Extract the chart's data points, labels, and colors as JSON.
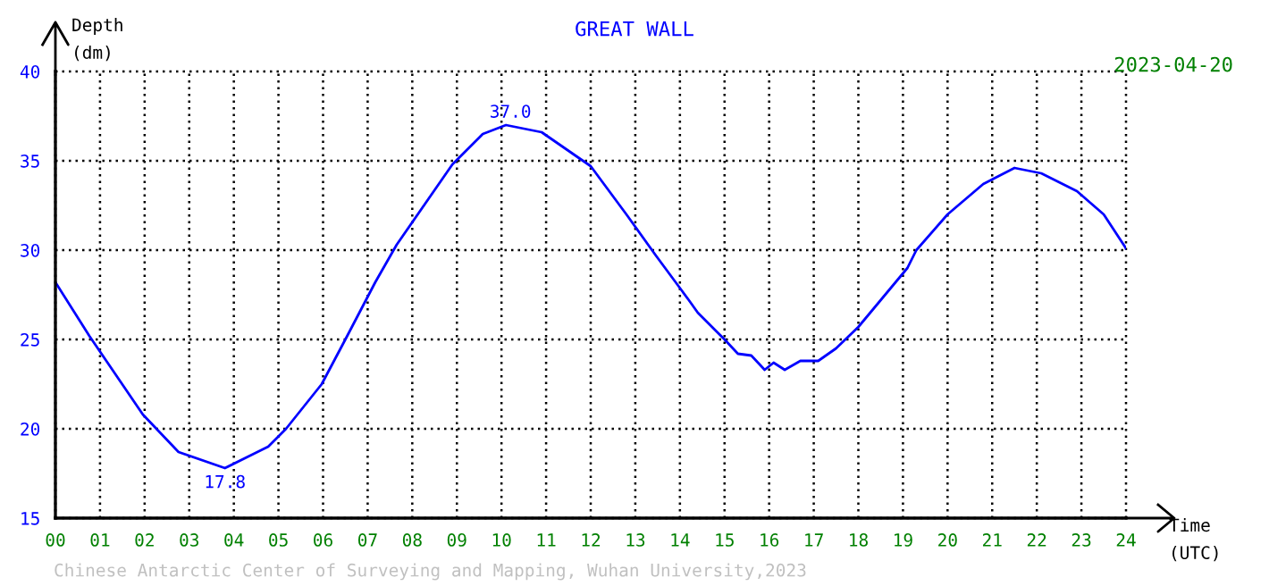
{
  "chart_data": {
    "type": "line",
    "title": "GREAT WALL",
    "subtitle": "2023-04-20",
    "xlabel": "Time\n(UTC)",
    "ylabel": "Depth\n(dm)",
    "x": [
      0.0,
      0.76,
      1.96,
      2.76,
      3.8,
      4.77,
      5.17,
      5.97,
      6.5,
      7.17,
      7.65,
      8.9,
      9.58,
      10.1,
      10.9,
      12.0,
      12.8,
      13.46,
      14.2,
      14.4,
      15.0,
      15.3,
      15.6,
      15.9,
      16.1,
      16.35,
      16.7,
      17.1,
      17.5,
      18.0,
      18.5,
      19.1,
      19.3,
      20.0,
      20.8,
      21.5,
      22.1,
      22.9,
      23.5,
      24.0
    ],
    "series": [
      {
        "color": "#0000ff",
        "values": [
          28.2,
          25.2,
          20.8,
          18.7,
          17.8,
          19.0,
          20.0,
          22.5,
          25.0,
          28.2,
          30.3,
          34.8,
          36.5,
          37.0,
          36.6,
          34.7,
          32.0,
          29.7,
          27.2,
          26.5,
          25.0,
          24.2,
          24.1,
          23.3,
          23.7,
          23.3,
          23.8,
          23.8,
          24.5,
          25.7,
          27.2,
          29.0,
          30.0,
          32.0,
          33.7,
          34.6,
          34.3,
          33.3,
          32.0,
          30.1
        ]
      }
    ],
    "xlim": [
      0,
      24
    ],
    "ylim": [
      15,
      40
    ],
    "xticks": [
      {
        "value": 0,
        "label": "00"
      },
      {
        "value": 1,
        "label": "01"
      },
      {
        "value": 2,
        "label": "02"
      },
      {
        "value": 3,
        "label": "03"
      },
      {
        "value": 4,
        "label": "04"
      },
      {
        "value": 5,
        "label": "05"
      },
      {
        "value": 6,
        "label": "06"
      },
      {
        "value": 7,
        "label": "07"
      },
      {
        "value": 8,
        "label": "08"
      },
      {
        "value": 9,
        "label": "09"
      },
      {
        "value": 10,
        "label": "10"
      },
      {
        "value": 11,
        "label": "11"
      },
      {
        "value": 12,
        "label": "12"
      },
      {
        "value": 13,
        "label": "13"
      },
      {
        "value": 14,
        "label": "14"
      },
      {
        "value": 15,
        "label": "15"
      },
      {
        "value": 16,
        "label": "16"
      },
      {
        "value": 17,
        "label": "17"
      },
      {
        "value": 18,
        "label": "18"
      },
      {
        "value": 19,
        "label": "19"
      },
      {
        "value": 20,
        "label": "20"
      },
      {
        "value": 21,
        "label": "21"
      },
      {
        "value": 22,
        "label": "22"
      },
      {
        "value": 23,
        "label": "23"
      },
      {
        "value": 24,
        "label": "24"
      }
    ],
    "yticks": [
      15,
      20,
      25,
      30,
      35,
      40
    ],
    "grid": true,
    "marker": "none",
    "line_style": "solid",
    "annotations": [
      {
        "text": "37.0",
        "x": 10.2,
        "y": 37.0
      },
      {
        "text": "17.8",
        "x": 3.8,
        "y": 17.8
      },
      "Chinese Antarctic Center of Surveying and Mapping, Wuhan University,2023"
    ]
  }
}
